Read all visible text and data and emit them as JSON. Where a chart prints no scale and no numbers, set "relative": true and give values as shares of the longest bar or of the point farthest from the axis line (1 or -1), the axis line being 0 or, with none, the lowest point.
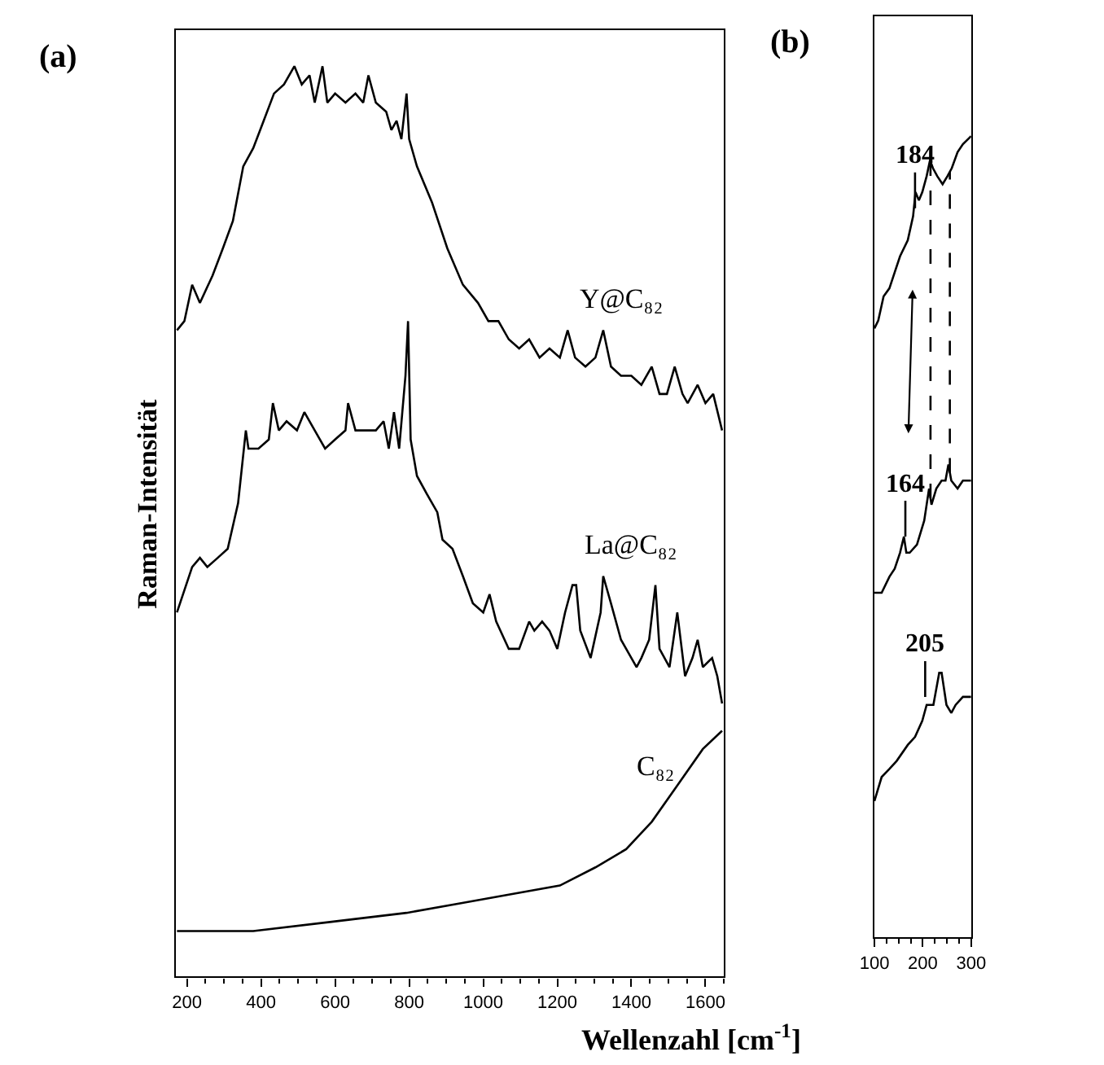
{
  "chart_data": [
    {
      "type": "line",
      "title": "(a)",
      "ylabel": "Raman-Intensität",
      "xlabel": "Wellenzahl [cm$^{-1}$]",
      "relative": true,
      "xlim": [
        170,
        1650
      ],
      "xticks": [
        200,
        400,
        600,
        800,
        1000,
        1200,
        1400,
        1600
      ],
      "legend": false,
      "marker": "none",
      "line_style": "solid",
      "tick_labels": "x",
      "series": [
        {
          "name": "Y@C₈₂",
          "color": "#000000",
          "x": [
            173,
            193,
            214,
            235,
            269,
            297,
            324,
            352,
            379,
            407,
            435,
            462,
            490,
            510,
            531,
            545,
            566,
            579,
            600,
            628,
            655,
            676,
            690,
            710,
            738,
            752,
            766,
            779,
            793,
            800,
            821,
            862,
            903,
            945,
            986,
            1014,
            1041,
            1069,
            1097,
            1124,
            1152,
            1179,
            1207,
            1228,
            1248,
            1276,
            1303,
            1324,
            1345,
            1372,
            1400,
            1427,
            1455,
            1476,
            1496,
            1517,
            1538,
            1552,
            1579,
            1600,
            1621,
            1645
          ],
          "values": [
            0.71,
            0.72,
            0.76,
            0.74,
            0.77,
            0.8,
            0.83,
            0.89,
            0.91,
            0.94,
            0.97,
            0.98,
            1.0,
            0.98,
            0.99,
            0.96,
            1.0,
            0.96,
            0.97,
            0.96,
            0.97,
            0.96,
            0.99,
            0.96,
            0.95,
            0.93,
            0.94,
            0.92,
            0.97,
            0.92,
            0.89,
            0.85,
            0.8,
            0.76,
            0.74,
            0.72,
            0.72,
            0.7,
            0.69,
            0.7,
            0.68,
            0.69,
            0.68,
            0.71,
            0.68,
            0.67,
            0.68,
            0.71,
            0.67,
            0.66,
            0.66,
            0.65,
            0.67,
            0.64,
            0.64,
            0.67,
            0.64,
            0.63,
            0.65,
            0.63,
            0.64,
            0.6
          ]
        },
        {
          "name": "La@C₈₂",
          "color": "#000000",
          "x": [
            173,
            214,
            235,
            255,
            283,
            310,
            338,
            359,
            366,
            393,
            421,
            432,
            448,
            469,
            497,
            517,
            545,
            573,
            600,
            628,
            635,
            655,
            683,
            710,
            731,
            745,
            759,
            773,
            790,
            797,
            804,
            821,
            848,
            876,
            890,
            917,
            945,
            972,
            1000,
            1017,
            1035,
            1069,
            1097,
            1124,
            1138,
            1159,
            1179,
            1200,
            1221,
            1241,
            1251,
            1262,
            1290,
            1317,
            1324,
            1345,
            1372,
            1400,
            1414,
            1427,
            1448,
            1465,
            1476,
            1503,
            1524,
            1545,
            1565,
            1579,
            1593,
            1618,
            1632,
            1645
          ],
          "values": [
            0.4,
            0.45,
            0.46,
            0.45,
            0.46,
            0.47,
            0.52,
            0.6,
            0.58,
            0.58,
            0.59,
            0.63,
            0.6,
            0.61,
            0.6,
            0.62,
            0.6,
            0.58,
            0.59,
            0.6,
            0.63,
            0.6,
            0.6,
            0.6,
            0.61,
            0.58,
            0.62,
            0.58,
            0.66,
            0.72,
            0.59,
            0.55,
            0.53,
            0.51,
            0.48,
            0.47,
            0.44,
            0.41,
            0.4,
            0.42,
            0.39,
            0.36,
            0.36,
            0.39,
            0.38,
            0.39,
            0.38,
            0.36,
            0.4,
            0.43,
            0.43,
            0.38,
            0.35,
            0.4,
            0.44,
            0.41,
            0.37,
            0.35,
            0.34,
            0.35,
            0.37,
            0.43,
            0.36,
            0.34,
            0.4,
            0.33,
            0.35,
            0.37,
            0.34,
            0.35,
            0.33,
            0.3
          ]
        },
        {
          "name": "C₈₂",
          "color": "#000000",
          "x": [
            173,
            379,
            586,
            793,
            931,
            1069,
            1207,
            1303,
            1386,
            1455,
            1524,
            1593,
            1645
          ],
          "values": [
            0.05,
            0.05,
            0.06,
            0.07,
            0.08,
            0.09,
            0.1,
            0.12,
            0.14,
            0.17,
            0.21,
            0.25,
            0.27
          ]
        }
      ]
    },
    {
      "type": "line",
      "title": "(b)",
      "relative": true,
      "xlim": [
        100,
        300
      ],
      "xticks": [
        100,
        200,
        300
      ],
      "legend": false,
      "marker": "none",
      "line_style": "solid",
      "tick_labels": "x",
      "series": [
        {
          "color": "#000000",
          "x": [
            100,
            108,
            119,
            131,
            142,
            153,
            169,
            180,
            185,
            192,
            199,
            208,
            215,
            221,
            230,
            241,
            251,
            260,
            272,
            283,
            300
          ],
          "values": [
            0.76,
            0.77,
            0.8,
            0.81,
            0.83,
            0.85,
            0.87,
            0.9,
            0.93,
            0.92,
            0.93,
            0.95,
            0.97,
            0.96,
            0.95,
            0.94,
            0.95,
            0.96,
            0.98,
            0.99,
            1.0
          ]
        },
        {
          "color": "#000000",
          "x": [
            100,
            115,
            131,
            142,
            153,
            161,
            166,
            173,
            188,
            203,
            213,
            218,
            228,
            239,
            247,
            253,
            259,
            272,
            283,
            300
          ],
          "values": [
            0.43,
            0.43,
            0.45,
            0.46,
            0.48,
            0.5,
            0.48,
            0.48,
            0.49,
            0.52,
            0.56,
            0.54,
            0.56,
            0.57,
            0.57,
            0.59,
            0.57,
            0.56,
            0.57,
            0.57
          ]
        },
        {
          "color": "#000000",
          "x": [
            100,
            115,
            131,
            146,
            169,
            184,
            199,
            208,
            215,
            222,
            234,
            239,
            249,
            259,
            268,
            283,
            300
          ],
          "values": [
            0.17,
            0.2,
            0.21,
            0.22,
            0.24,
            0.25,
            0.27,
            0.29,
            0.29,
            0.29,
            0.33,
            0.33,
            0.29,
            0.28,
            0.29,
            0.3,
            0.3
          ]
        }
      ],
      "ref_lines": [
        {
          "axis": "x",
          "value": 216,
          "line_style": "dashed",
          "color": "#000000"
        },
        {
          "axis": "x",
          "value": 256,
          "line_style": "dashed",
          "color": "#000000"
        }
      ],
      "annotations": [
        {
          "text": "184",
          "x": 184,
          "y": 0.91
        },
        {
          "text": "164",
          "x": 164,
          "y": 0.5
        },
        {
          "text": "205",
          "x": 205,
          "y": 0.3
        }
      ]
    }
  ]
}
